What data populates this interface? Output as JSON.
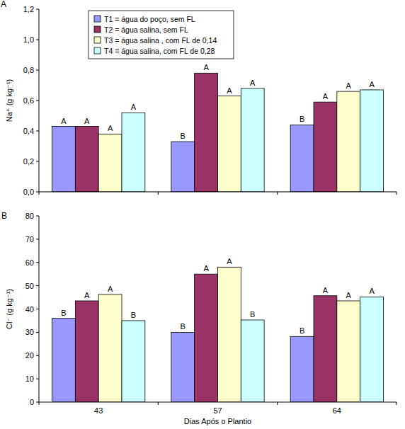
{
  "chart_data": [
    {
      "type": "bar",
      "panel": "A",
      "y_label": "Na⁺ (g kg⁻¹)",
      "categories": [
        "43",
        "57",
        "64"
      ],
      "series": [
        {
          "name": "T1 = água do poço, sem FL",
          "color": "#9999ff",
          "values": [
            0.43,
            0.33,
            0.44
          ],
          "letters": [
            "A",
            "B",
            "B"
          ]
        },
        {
          "name": "T2 = água salina, sem FL",
          "color": "#993366",
          "values": [
            0.43,
            0.78,
            0.59
          ],
          "letters": [
            "A",
            "A",
            "A"
          ]
        },
        {
          "name": "T3 = água salina , com FL de 0,14",
          "color": "#ffffcc",
          "values": [
            0.38,
            0.63,
            0.66
          ],
          "letters": [
            "A",
            "A",
            "A"
          ]
        },
        {
          "name": "T4 = água salina, com FL de 0,28",
          "color": "#ccffff",
          "values": [
            0.52,
            0.68,
            0.67
          ],
          "letters": [
            "A",
            "A",
            "A"
          ]
        }
      ],
      "ylim": [
        0,
        1.2
      ],
      "yticks": [
        {
          "value": 0,
          "label": "0,0"
        },
        {
          "value": 0.2,
          "label": "0,2"
        },
        {
          "value": 0.4,
          "label": "0,4"
        },
        {
          "value": 0.6,
          "label": "0,6"
        },
        {
          "value": 0.8,
          "label": "0,8"
        },
        {
          "value": 1.0,
          "label": "1,0"
        },
        {
          "value": 1.2,
          "label": "1,2"
        }
      ],
      "grid": false,
      "legend": "top-left",
      "tick_labels": "y"
    },
    {
      "type": "bar",
      "panel": "B",
      "y_label": "Cl⁻ (g kg⁻¹)",
      "x_label": "Dias Após o Plantio",
      "categories": [
        "43",
        "57",
        "64"
      ],
      "series": [
        {
          "name": "T1 = água do poço, sem FL",
          "color": "#9999ff",
          "values": [
            36,
            30,
            28.2
          ],
          "letters": [
            "B",
            "B",
            "B"
          ]
        },
        {
          "name": "T2 = água salina, sem FL",
          "color": "#993366",
          "values": [
            43.5,
            55,
            45.7
          ],
          "letters": [
            "A",
            "A",
            "A"
          ]
        },
        {
          "name": "T3 = água salina , com FL de 0,14",
          "color": "#ffffcc",
          "values": [
            46.3,
            58,
            43.5
          ],
          "letters": [
            "A",
            "A",
            "A"
          ]
        },
        {
          "name": "T4 = água salina, com FL de 0,28",
          "color": "#ccffff",
          "values": [
            35,
            35.3,
            45.2
          ],
          "letters": [
            "B",
            "B",
            "A"
          ]
        }
      ],
      "ylim": [
        0,
        80
      ],
      "yticks": [
        0,
        10,
        20,
        30,
        40,
        50,
        60,
        70,
        80
      ],
      "grid": false
    }
  ]
}
